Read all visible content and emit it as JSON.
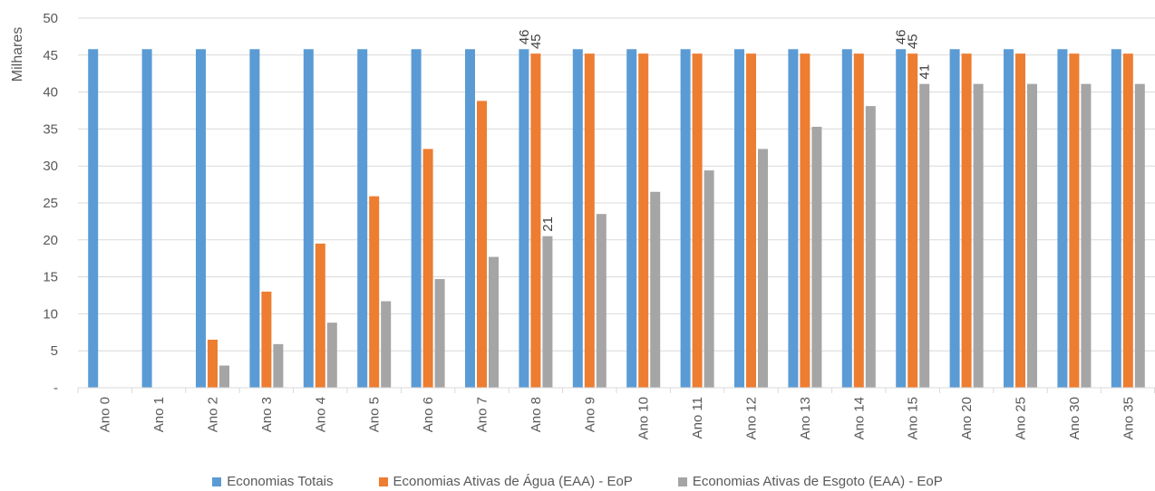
{
  "chart_data": {
    "type": "bar",
    "ylabel": "Milhares",
    "ylim": [
      0,
      50
    ],
    "yticks": [
      "-",
      "5",
      "10",
      "15",
      "20",
      "25",
      "30",
      "35",
      "40",
      "45",
      "50"
    ],
    "grid": true,
    "legend_position": "bottom",
    "categories": [
      "Ano 0",
      "Ano 1",
      "Ano 2",
      "Ano 3",
      "Ano 4",
      "Ano 5",
      "Ano 6",
      "Ano 7",
      "Ano 8",
      "Ano 9",
      "Ano 10",
      "Ano 11",
      "Ano 12",
      "Ano 13",
      "Ano 14",
      "Ano 15",
      "Ano 20",
      "Ano 25",
      "Ano 30",
      "Ano 35"
    ],
    "series": [
      {
        "name": "Economias Totais",
        "color": "#5B9BD5",
        "values": [
          45.8,
          45.8,
          45.8,
          45.8,
          45.8,
          45.8,
          45.8,
          45.8,
          45.8,
          45.8,
          45.8,
          45.8,
          45.8,
          45.8,
          45.8,
          45.8,
          45.8,
          45.8,
          45.8,
          45.8
        ],
        "labels": {
          "8": "46",
          "15": "46"
        }
      },
      {
        "name": "Economias Ativas de Água (EAA) - EoP",
        "color": "#ED7D31",
        "values": [
          0,
          0,
          6.5,
          13.0,
          19.5,
          25.9,
          32.3,
          38.8,
          45.2,
          45.2,
          45.2,
          45.2,
          45.2,
          45.2,
          45.2,
          45.2,
          45.2,
          45.2,
          45.2,
          45.2
        ],
        "labels": {
          "8": "45",
          "15": "45"
        }
      },
      {
        "name": "Economias Ativas de Esgoto (EAA) - EoP",
        "color": "#A5A5A5",
        "values": [
          0,
          0,
          3.0,
          5.9,
          8.8,
          11.7,
          14.7,
          17.7,
          20.5,
          23.5,
          26.5,
          29.4,
          32.3,
          35.3,
          38.1,
          41.1,
          41.1,
          41.1,
          41.1,
          41.1
        ],
        "labels": {
          "8": "21",
          "15": "41"
        }
      }
    ]
  }
}
